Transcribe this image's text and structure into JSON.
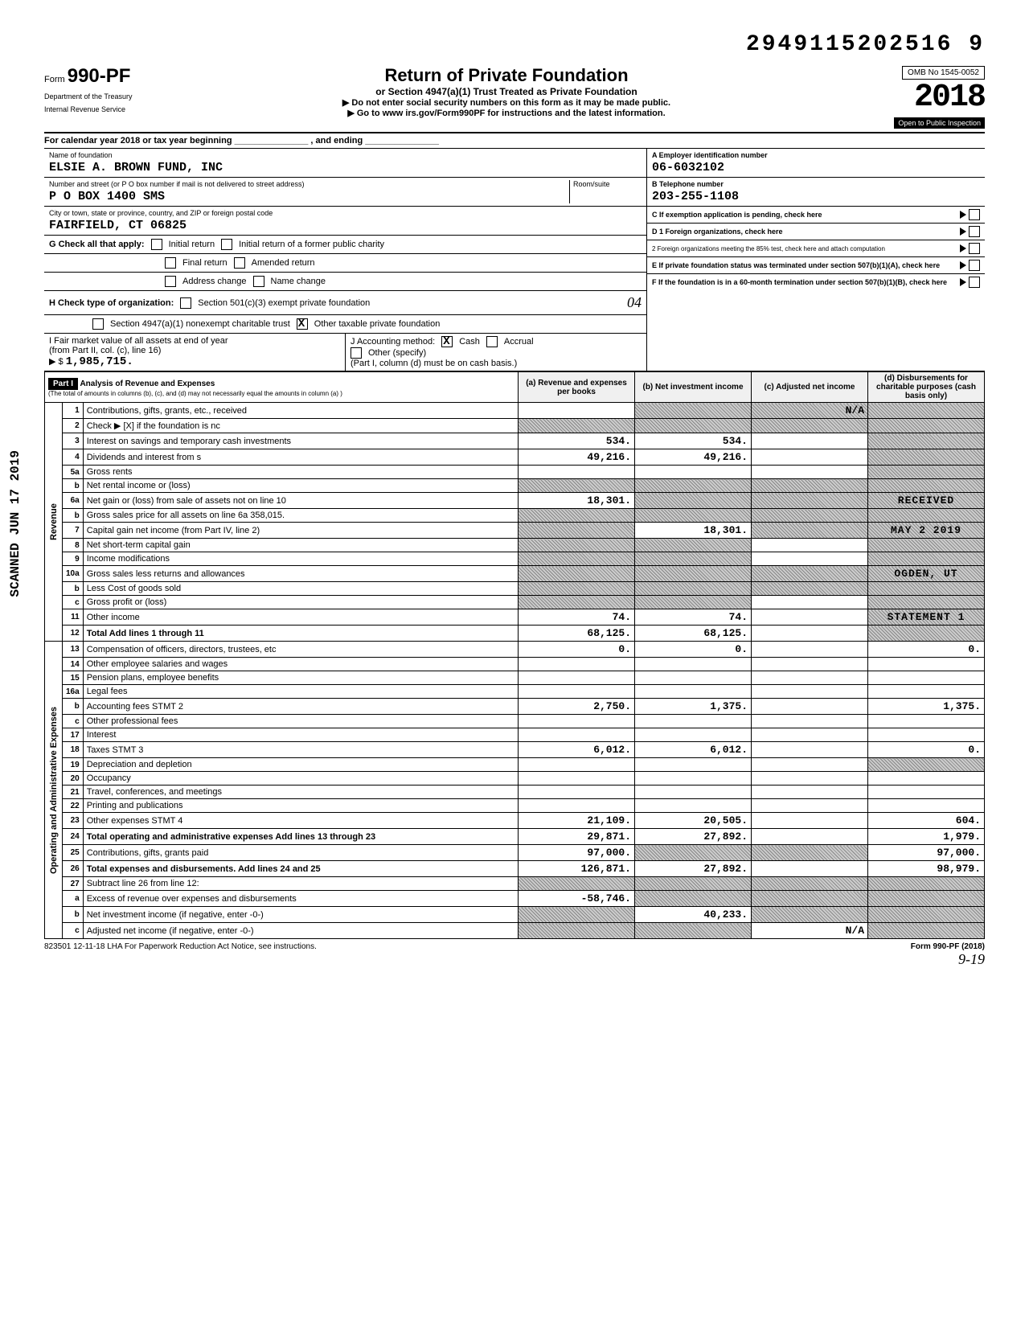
{
  "topId": "2949115202516 9",
  "form": {
    "prefix": "Form",
    "number": "990-PF",
    "dept1": "Department of the Treasury",
    "dept2": "Internal Revenue Service"
  },
  "header": {
    "title": "Return of Private Foundation",
    "sub": "or Section 4947(a)(1) Trust Treated as Private Foundation",
    "note1": "▶ Do not enter social security numbers on this form as it may be made public.",
    "note2": "▶ Go to www irs.gov/Form990PF for instructions and the latest information.",
    "omb": "OMB No 1545-0052",
    "year": "2018",
    "openInsp": "Open to Public Inspection"
  },
  "calYear": "For calendar year 2018 or tax year beginning _______________ , and ending _______________",
  "foundation": {
    "nameLabel": "Name of foundation",
    "name": "ELSIE A. BROWN FUND, INC",
    "addrLabel": "Number and street (or P O  box number if mail is not delivered to street address)",
    "addr": "P O BOX 1400 SMS",
    "roomLabel": "Room/suite",
    "cityLabel": "City or town, state or province, country, and ZIP or foreign postal code",
    "city": "FAIRFIELD, CT   06825"
  },
  "right": {
    "A": "A  Employer identification number",
    "Aval": "06-6032102",
    "B": "B  Telephone number",
    "Bval": "203-255-1108",
    "C": "C  If exemption application is pending, check here",
    "D1": "D 1  Foreign organizations, check here",
    "D2": "2  Foreign organizations meeting the 85% test, check here and attach computation",
    "E": "E  If private foundation status was terminated under section 507(b)(1)(A), check here",
    "F": "F  If the foundation is in a 60-month termination under section 507(b)(1)(B), check here"
  },
  "G": {
    "label": "G  Check all that apply:",
    "i1": "Initial return",
    "i2": "Initial return of a former public charity",
    "i3": "Final return",
    "i4": "Amended return",
    "i5": "Address change",
    "i6": "Name change"
  },
  "H": {
    "label": "H  Check type of organization:",
    "o1": "Section 501(c)(3) exempt private foundation",
    "o2": "Section 4947(a)(1) nonexempt charitable trust",
    "o3": "Other taxable private foundation",
    "hand": "04"
  },
  "I": {
    "label": "I  Fair market value of all assets at end of year",
    "label2": "(from Part II, col. (c), line 16)",
    "arrow": "▶ $",
    "val": "1,985,715."
  },
  "J": {
    "label": "J  Accounting method:",
    "o1": "Cash",
    "o2": "Accrual",
    "o3": "Other (specify)",
    "note": "(Part I, column (d) must be on cash basis.)"
  },
  "part1": {
    "hdr": "Part I",
    "title": "Analysis of Revenue and Expenses",
    "note": "(The total of amounts in columns (b), (c), and (d) may not necessarily equal the amounts in column (a) )",
    "cols": {
      "a": "(a) Revenue and expenses per books",
      "b": "(b) Net investment income",
      "c": "(c) Adjusted net income",
      "d": "(d) Disbursements for charitable purposes (cash basis only)"
    }
  },
  "sideRev": "Revenue",
  "sideExp": "Operating and Administrative Expenses",
  "rows": [
    {
      "n": "1",
      "label": "Contributions, gifts, grants, etc., received",
      "a": "",
      "b": "shaded",
      "c": "N/A",
      "cstyle": "shaded",
      "d": "shaded"
    },
    {
      "n": "2",
      "label": "Check ▶ [X] if the foundation is nc",
      "a": "shaded",
      "b": "shaded",
      "c": "shaded",
      "d": "shaded"
    },
    {
      "n": "3",
      "label": "Interest on savings and temporary cash investments",
      "a": "534.",
      "b": "534.",
      "c": "",
      "d": "shaded"
    },
    {
      "n": "4",
      "label": "Dividends and interest from s",
      "a": "49,216.",
      "b": "49,216.",
      "c": "",
      "d": "shaded"
    },
    {
      "n": "5a",
      "label": "Gross rents",
      "a": "",
      "b": "",
      "c": "",
      "d": "shaded"
    },
    {
      "n": "b",
      "label": "Net rental income or (loss)",
      "a": "shaded",
      "b": "shaded",
      "c": "shaded",
      "d": "shaded"
    },
    {
      "n": "6a",
      "label": "Net gain or (loss) from sale of assets not on line 10",
      "a": "18,301.",
      "b": "shaded",
      "c": "shaded",
      "d": "RECEIVED",
      "dstyle": "stamp"
    },
    {
      "n": "b",
      "label": "Gross sales price for all assets on line 6a    358,015.",
      "a": "shaded",
      "b": "shaded",
      "c": "shaded",
      "d": "shaded"
    },
    {
      "n": "7",
      "label": "Capital gain net income (from Part IV, line 2)",
      "a": "shaded",
      "b": "18,301.",
      "c": "shaded",
      "d": "MAY 2 2019",
      "dstyle": "stamp"
    },
    {
      "n": "8",
      "label": "Net short-term capital gain",
      "a": "shaded",
      "b": "shaded",
      "c": "",
      "d": "shaded"
    },
    {
      "n": "9",
      "label": "Income modifications",
      "a": "shaded",
      "b": "shaded",
      "c": "",
      "d": "shaded"
    },
    {
      "n": "10a",
      "label": "Gross sales less returns and allowances",
      "a": "shaded",
      "b": "shaded",
      "c": "shaded",
      "d": "OGDEN, UT",
      "dstyle": "stamp"
    },
    {
      "n": "b",
      "label": "Less  Cost of goods sold",
      "a": "shaded",
      "b": "shaded",
      "c": "shaded",
      "d": "shaded"
    },
    {
      "n": "c",
      "label": "Gross profit or (loss)",
      "a": "shaded",
      "b": "shaded",
      "c": "",
      "d": "shaded"
    },
    {
      "n": "11",
      "label": "Other income",
      "a": "74.",
      "b": "74.",
      "c": "",
      "d": "STATEMENT 1",
      "dstyle": "stamp"
    },
    {
      "n": "12",
      "label": "Total  Add lines 1 through 11",
      "a": "68,125.",
      "b": "68,125.",
      "c": "",
      "d": "shaded",
      "bold": true
    },
    {
      "n": "13",
      "label": "Compensation of officers, directors, trustees, etc",
      "a": "0.",
      "b": "0.",
      "c": "",
      "d": "0."
    },
    {
      "n": "14",
      "label": "Other employee salaries and wages",
      "a": "",
      "b": "",
      "c": "",
      "d": ""
    },
    {
      "n": "15",
      "label": "Pension plans, employee benefits",
      "a": "",
      "b": "",
      "c": "",
      "d": ""
    },
    {
      "n": "16a",
      "label": "Legal fees",
      "a": "",
      "b": "",
      "c": "",
      "d": ""
    },
    {
      "n": "b",
      "label": "Accounting fees            STMT 2",
      "a": "2,750.",
      "b": "1,375.",
      "c": "",
      "d": "1,375."
    },
    {
      "n": "c",
      "label": "Other professional fees",
      "a": "",
      "b": "",
      "c": "",
      "d": ""
    },
    {
      "n": "17",
      "label": "Interest",
      "a": "",
      "b": "",
      "c": "",
      "d": ""
    },
    {
      "n": "18",
      "label": "Taxes                      STMT 3",
      "a": "6,012.",
      "b": "6,012.",
      "c": "",
      "d": "0."
    },
    {
      "n": "19",
      "label": "Depreciation and depletion",
      "a": "",
      "b": "",
      "c": "",
      "d": "shaded"
    },
    {
      "n": "20",
      "label": "Occupancy",
      "a": "",
      "b": "",
      "c": "",
      "d": ""
    },
    {
      "n": "21",
      "label": "Travel, conferences, and meetings",
      "a": "",
      "b": "",
      "c": "",
      "d": ""
    },
    {
      "n": "22",
      "label": "Printing and publications",
      "a": "",
      "b": "",
      "c": "",
      "d": ""
    },
    {
      "n": "23",
      "label": "Other expenses             STMT 4",
      "a": "21,109.",
      "b": "20,505.",
      "c": "",
      "d": "604."
    },
    {
      "n": "24",
      "label": "Total operating and administrative expenses  Add lines 13 through 23",
      "a": "29,871.",
      "b": "27,892.",
      "c": "",
      "d": "1,979.",
      "bold": true
    },
    {
      "n": "25",
      "label": "Contributions, gifts, grants paid",
      "a": "97,000.",
      "b": "shaded",
      "c": "shaded",
      "d": "97,000."
    },
    {
      "n": "26",
      "label": "Total expenses and disbursements. Add lines 24 and 25",
      "a": "126,871.",
      "b": "27,892.",
      "c": "",
      "d": "98,979.",
      "bold": true
    },
    {
      "n": "27",
      "label": "Subtract line 26 from line 12:",
      "a": "shaded",
      "b": "shaded",
      "c": "shaded",
      "d": "shaded"
    },
    {
      "n": "a",
      "label": "Excess of revenue over expenses and disbursements",
      "a": "-58,746.",
      "b": "shaded",
      "c": "shaded",
      "d": "shaded"
    },
    {
      "n": "b",
      "label": "Net investment income (if negative, enter -0-)",
      "a": "shaded",
      "b": "40,233.",
      "c": "shaded",
      "d": "shaded"
    },
    {
      "n": "c",
      "label": "Adjusted net income (if negative, enter -0-)",
      "a": "shaded",
      "b": "shaded",
      "c": "N/A",
      "d": "shaded"
    }
  ],
  "footer": {
    "left": "823501 12-11-18     LHA  For Paperwork Reduction Act Notice, see instructions.",
    "right": "Form 990-PF (2018)",
    "hand": "9-19"
  },
  "scanned": "SCANNED  JUN 17 2019",
  "colors": {
    "shadedBg": "#bbbbbb",
    "border": "#000000"
  }
}
